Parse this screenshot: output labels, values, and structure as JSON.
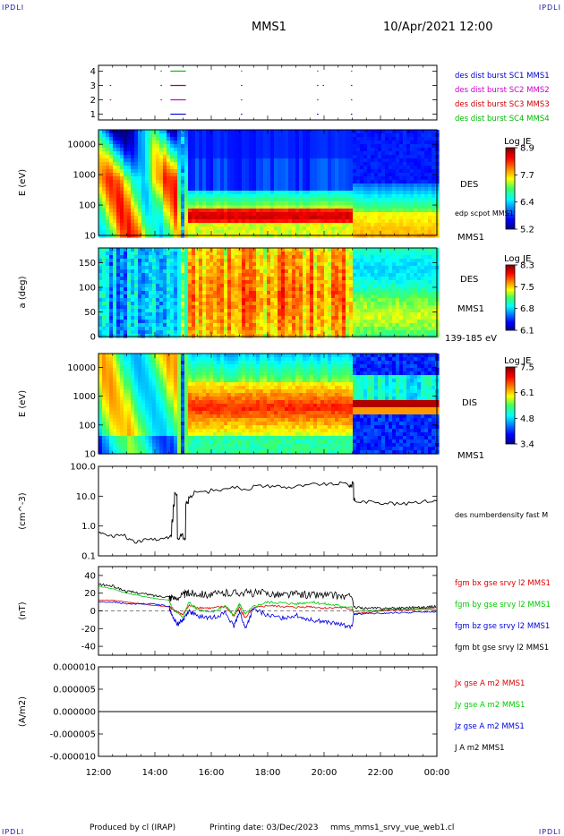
{
  "header": {
    "corner_left": "IPDLI",
    "corner_right": "IPDLI",
    "spacecraft": "MMS1",
    "datetime": "10/Apr/2021 12:00"
  },
  "footer": {
    "produced_by": "Produced by cl (IRAP)",
    "printing_date": "Printing date: 03/Dec/2023",
    "file_name": "mms_mms1_srvy_vue_web1.cl",
    "corner_left": "IPDLI",
    "corner_right": "IPDLI"
  },
  "time_axis": {
    "labels": [
      "12:00",
      "14:00",
      "16:00",
      "18:00",
      "20:00",
      "22:00",
      "00:00"
    ],
    "hours": [
      12,
      14,
      16,
      18,
      20,
      22,
      24
    ]
  },
  "chart_data": [
    {
      "type": "scatter",
      "panel": "burst_availability",
      "yticks": [
        "1",
        "2",
        "3",
        "4"
      ],
      "legend": [
        {
          "label": "des dist burst SC1 MMS1",
          "color": "#0000cc"
        },
        {
          "label": "des dist burst SC2 MMS2",
          "color": "#cc00cc"
        },
        {
          "label": "des dist burst SC3 MMS3",
          "color": "#cc0000"
        },
        {
          "label": "des dist burst SC4 MMS4",
          "color": "#00bb00"
        }
      ],
      "series": [
        {
          "name": "des dist burst SC1 MMS1",
          "level": 1,
          "intervals": [
            [
              14.55,
              15.1
            ],
            [
              17.05,
              17.08
            ],
            [
              19.75,
              19.8
            ],
            [
              20.95,
              21.0
            ]
          ]
        },
        {
          "name": "des dist burst SC2 MMS2",
          "level": 2,
          "intervals": [
            [
              12.4,
              12.45
            ],
            [
              14.2,
              14.25
            ],
            [
              14.55,
              15.1
            ],
            [
              17.05,
              17.08
            ],
            [
              19.75,
              19.8
            ],
            [
              20.95,
              21.0
            ]
          ]
        },
        {
          "name": "des dist burst SC3 MMS3",
          "level": 3,
          "intervals": [
            [
              12.4,
              12.45
            ],
            [
              14.2,
              14.25
            ],
            [
              14.55,
              15.1
            ],
            [
              17.05,
              17.08
            ],
            [
              19.75,
              19.8
            ],
            [
              19.95,
              20.0
            ],
            [
              20.95,
              21.0
            ]
          ]
        },
        {
          "name": "des dist burst SC4 MMS4",
          "level": 4,
          "intervals": [
            [
              14.2,
              14.25
            ],
            [
              14.55,
              15.1
            ],
            [
              17.05,
              17.08
            ],
            [
              19.75,
              19.8
            ],
            [
              20.95,
              21.0
            ]
          ]
        }
      ]
    },
    {
      "type": "heatmap",
      "panel": "des_energy_spectrogram",
      "ylabel": "E (eV)",
      "yscale": "log",
      "yticks": [
        "10",
        "100",
        "1000",
        "10000"
      ],
      "ylim": [
        10,
        30000
      ],
      "label": "DES",
      "spacecraft": "MMS1",
      "overlay": "edp scpot MMS1",
      "colorbar": {
        "title": "Log JE",
        "min": 5.2,
        "max": 8.9,
        "ticks": [
          "8.9",
          "7.7",
          "6.4",
          "5.2"
        ]
      }
    },
    {
      "type": "heatmap",
      "panel": "des_pitch_angle",
      "ylabel": "a (deg)",
      "yticks": [
        "0",
        "50",
        "100",
        "150"
      ],
      "ylim": [
        0,
        180
      ],
      "label": "DES",
      "spacecraft": "MMS1",
      "energy_range": "139-185 eV",
      "colorbar": {
        "title": "Log JE",
        "min": 6.1,
        "max": 8.3,
        "ticks": [
          "8.3",
          "7.5",
          "6.8",
          "6.1"
        ]
      }
    },
    {
      "type": "heatmap",
      "panel": "dis_energy_spectrogram",
      "ylabel": "E (eV)",
      "yscale": "log",
      "yticks": [
        "10",
        "100",
        "1000",
        "10000"
      ],
      "ylim": [
        10,
        30000
      ],
      "label": "DIS",
      "spacecraft": "MMS1",
      "colorbar": {
        "title": "Log JE",
        "min": 3.4,
        "max": 7.5,
        "ticks": [
          "7.5",
          "6.1",
          "4.8",
          "3.4"
        ]
      }
    },
    {
      "type": "line",
      "panel": "density",
      "ylabel": "(cm^-3)",
      "yscale": "log",
      "yticks": [
        "0.1",
        "1.0",
        "10.0",
        "100.0"
      ],
      "ylim": [
        0.1,
        100
      ],
      "series": [
        {
          "name": "des numberdensity fast M",
          "color": "#000000",
          "x": [
            12.0,
            12.3,
            12.6,
            13.0,
            13.3,
            13.6,
            14.0,
            14.3,
            14.55,
            14.6,
            14.65,
            14.7,
            14.8,
            14.9,
            15.0,
            15.1,
            15.2,
            15.4,
            16.0,
            16.5,
            17.0,
            17.5,
            18.0,
            18.5,
            19.0,
            19.5,
            20.0,
            20.5,
            20.9,
            21.0,
            21.05,
            21.1,
            21.5,
            22.0,
            22.5,
            23.0,
            23.5,
            24.0
          ],
          "y": [
            0.6,
            0.45,
            0.5,
            0.35,
            0.3,
            0.35,
            0.35,
            0.4,
            0.45,
            1.5,
            5.0,
            12.0,
            0.4,
            0.5,
            0.35,
            6.0,
            10.0,
            14.0,
            16.0,
            20.0,
            18.0,
            22.0,
            22.0,
            20.0,
            22.0,
            25.0,
            25.0,
            27.0,
            22.0,
            30.0,
            8.0,
            6.5,
            6.5,
            6.0,
            5.5,
            6.5,
            6.8,
            7.0
          ]
        }
      ]
    },
    {
      "type": "line",
      "panel": "magnetic_field",
      "ylabel": "(nT)",
      "yticks": [
        "-40",
        "-20",
        "0",
        "20",
        "40"
      ],
      "ylim": [
        -50,
        50
      ],
      "series": [
        {
          "name": "fgm bx gse srvy l2 MMS1",
          "color": "#dd0000",
          "x": [
            12.0,
            12.5,
            13.0,
            13.5,
            14.0,
            14.5,
            14.6,
            15.0,
            15.2,
            15.5,
            16.0,
            16.5,
            16.8,
            17.0,
            17.2,
            17.5,
            18.0,
            18.5,
            19.0,
            19.5,
            20.0,
            20.5,
            21.0,
            21.05,
            21.5,
            22.0,
            22.5,
            23.0,
            23.5,
            24.0
          ],
          "y": [
            12,
            12,
            10,
            8,
            6,
            5,
            2,
            -4,
            6,
            4,
            3,
            5,
            -6,
            4,
            -8,
            3,
            6,
            5,
            4,
            5,
            3,
            4,
            2,
            -3,
            -2,
            0,
            1,
            1,
            2,
            2
          ]
        },
        {
          "name": "fgm by gse srvy l2 MMS1",
          "color": "#00cc00",
          "x": [
            12.0,
            12.5,
            13.0,
            13.5,
            14.0,
            14.5,
            14.6,
            15.0,
            15.2,
            15.5,
            16.0,
            16.5,
            16.8,
            17.0,
            17.2,
            17.5,
            18.0,
            18.5,
            19.0,
            19.5,
            20.0,
            20.5,
            21.0,
            21.05,
            21.5,
            22.0,
            22.5,
            23.0,
            23.5,
            24.0
          ],
          "y": [
            28,
            25,
            20,
            17,
            14,
            12,
            4,
            -8,
            10,
            2,
            -2,
            6,
            -5,
            8,
            -4,
            5,
            10,
            9,
            8,
            10,
            8,
            6,
            4,
            -1,
            0,
            1,
            2,
            2,
            3,
            4
          ]
        },
        {
          "name": "fgm bz gse srvy l2 MMS1",
          "color": "#0000dd",
          "x": [
            12.0,
            12.5,
            13.0,
            13.5,
            14.0,
            14.5,
            14.6,
            14.8,
            15.0,
            15.2,
            15.5,
            16.0,
            16.5,
            16.8,
            17.0,
            17.2,
            17.5,
            18.0,
            18.5,
            19.0,
            19.5,
            20.0,
            20.5,
            21.0,
            21.05,
            21.5,
            22.0,
            22.5,
            23.0,
            23.5,
            24.0
          ],
          "y": [
            10,
            10,
            8,
            8,
            8,
            5,
            -5,
            -15,
            -10,
            0,
            -6,
            -8,
            -2,
            -18,
            0,
            -20,
            2,
            -5,
            -8,
            -5,
            -10,
            -12,
            -15,
            -18,
            -4,
            -3,
            -3,
            -2,
            -2,
            -1,
            -1
          ]
        },
        {
          "name": "fgm bt gse srvy l2 MMS1",
          "color": "#000000",
          "x": [
            12.0,
            12.5,
            13.0,
            13.5,
            14.0,
            14.5,
            14.6,
            15.0,
            15.2,
            15.5,
            16.0,
            16.5,
            17.0,
            17.5,
            18.0,
            18.5,
            19.0,
            19.5,
            20.0,
            20.5,
            21.0,
            21.05,
            21.5,
            22.0,
            22.5,
            23.0,
            23.5,
            24.0
          ],
          "y": [
            30,
            28,
            22,
            20,
            17,
            16,
            14,
            18,
            20,
            20,
            18,
            20,
            21,
            20,
            20,
            18,
            19,
            18,
            18,
            17,
            15,
            4,
            3,
            3,
            3,
            4,
            4,
            5
          ]
        }
      ]
    },
    {
      "type": "line",
      "panel": "current_density",
      "ylabel": "(A/m2)",
      "yticks": [
        "-0.000010",
        "-0.000005",
        "0.000000",
        "0.000005",
        "0.000010"
      ],
      "ylim": [
        -1e-05,
        1e-05
      ],
      "series": [
        {
          "name": "Jx gse A m2 MMS1",
          "color": "#dd0000",
          "x": [
            12.0,
            24.0
          ],
          "y": [
            0.0,
            0.0
          ]
        },
        {
          "name": "Jy gse A m2 MMS1",
          "color": "#00cc00",
          "x": [
            12.0,
            24.0
          ],
          "y": [
            0.0,
            0.0
          ]
        },
        {
          "name": "Jz gse A m2 MMS1",
          "color": "#0000dd",
          "x": [
            12.0,
            24.0
          ],
          "y": [
            0.0,
            0.0
          ]
        },
        {
          "name": "J A m2 MMS1",
          "color": "#000000",
          "x": [
            12.0,
            24.0
          ],
          "y": [
            0.0,
            0.0
          ]
        }
      ]
    }
  ]
}
